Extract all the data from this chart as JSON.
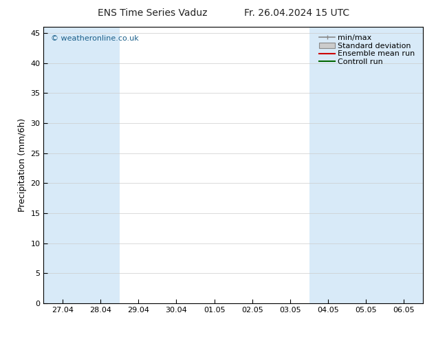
{
  "title_left": "ENS Time Series Vaduz",
  "title_right": "Fr. 26.04.2024 15 UTC",
  "ylabel": "Precipitation (mm/6h)",
  "ylim": [
    0,
    46
  ],
  "yticks": [
    0,
    5,
    10,
    15,
    20,
    25,
    30,
    35,
    40,
    45
  ],
  "xlabels": [
    "27.04",
    "28.04",
    "29.04",
    "30.04",
    "01.05",
    "02.05",
    "03.05",
    "04.05",
    "05.05",
    "06.05"
  ],
  "n_xticks": 10,
  "band_color": "#d8eaf8",
  "bg_color": "#ffffff",
  "watermark": "© weatheronline.co.uk",
  "legend_labels": [
    "min/max",
    "Standard deviation",
    "Ensemble mean run",
    "Controll run"
  ],
  "legend_line_color": "#888888",
  "legend_std_color": "#cccccc",
  "legend_mean_color": "#cc0000",
  "legend_ctrl_color": "#006600",
  "title_fontsize": 10,
  "ylabel_fontsize": 9,
  "tick_fontsize": 8,
  "legend_fontsize": 8
}
